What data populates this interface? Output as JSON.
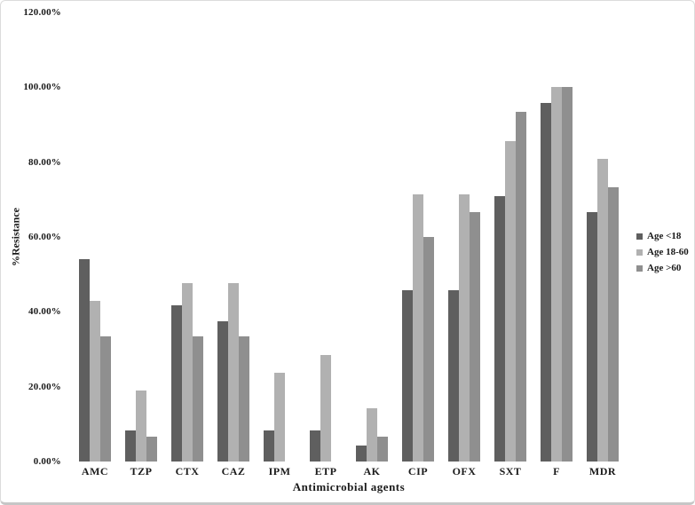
{
  "chart_data": {
    "type": "bar",
    "title": "",
    "xlabel": "Antimicrobial agents",
    "ylabel": "%Resistance",
    "categories": [
      "AMC",
      "TZP",
      "CTX",
      "CAZ",
      "IPM",
      "ETP",
      "AK",
      "CIP",
      "OFX",
      "SXT",
      "F",
      "MDR"
    ],
    "series": [
      {
        "name": "Age <18",
        "color": "#5f5f5f",
        "values": [
          54.17,
          8.33,
          41.67,
          37.5,
          8.33,
          8.33,
          4.17,
          45.83,
          45.83,
          70.83,
          95.83,
          66.67
        ]
      },
      {
        "name": "Age 18-60",
        "color": "#b1b1b1",
        "values": [
          42.86,
          19.05,
          47.62,
          47.62,
          23.81,
          28.57,
          14.29,
          71.43,
          71.43,
          85.71,
          100,
          80.95
        ]
      },
      {
        "name": "Age >60",
        "color": "#8f8f8f",
        "values": [
          33.33,
          6.67,
          33.33,
          33.33,
          0,
          0,
          6.67,
          60,
          66.67,
          93.33,
          100,
          73.33
        ]
      }
    ],
    "y_tick_labels": [
      "120.00%",
      "100.00%",
      "80.00%",
      "60.00%",
      "40.00%",
      "20.00%",
      "0.00%"
    ],
    "ylim": [
      0,
      120
    ],
    "grid": false,
    "legend_position": "right"
  }
}
